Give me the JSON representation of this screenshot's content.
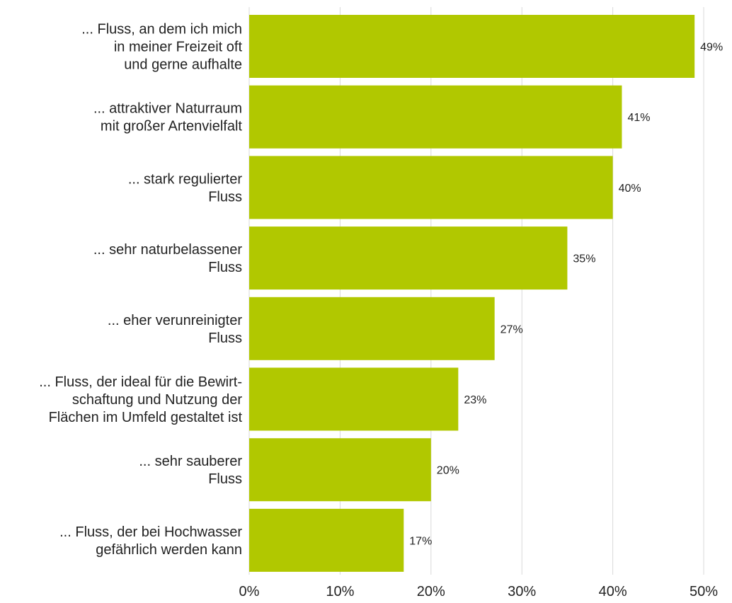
{
  "chart_data": {
    "type": "bar",
    "orientation": "horizontal",
    "categories": [
      [
        "... Fluss, an dem ich mich",
        "in meiner Freizeit oft",
        "und gerne aufhalte"
      ],
      [
        "... attraktiver Naturraum",
        "mit großer Artenvielfalt"
      ],
      [
        "... stark regulierter",
        "Fluss"
      ],
      [
        "... sehr naturbelassener",
        "Fluss"
      ],
      [
        "... eher verunreinigter",
        "Fluss"
      ],
      [
        "... Fluss, der ideal für die Bewirt-",
        "schaftung und Nutzung der",
        "Flächen im Umfeld gestaltet ist"
      ],
      [
        "... sehr sauberer",
        "Fluss"
      ],
      [
        "... Fluss, der bei Hochwasser",
        "gefährlich werden kann"
      ]
    ],
    "values": [
      49,
      41,
      40,
      35,
      27,
      23,
      20,
      17
    ],
    "value_labels": [
      "49%",
      "41%",
      "40%",
      "35%",
      "27%",
      "23%",
      "20%",
      "17%"
    ],
    "xticks": [
      "0%",
      "10%",
      "20%",
      "30%",
      "40%",
      "50%"
    ],
    "xlim": [
      0,
      50
    ],
    "grid": true,
    "bar_color": "#b1c800",
    "grid_color": "#d9d9d9"
  }
}
